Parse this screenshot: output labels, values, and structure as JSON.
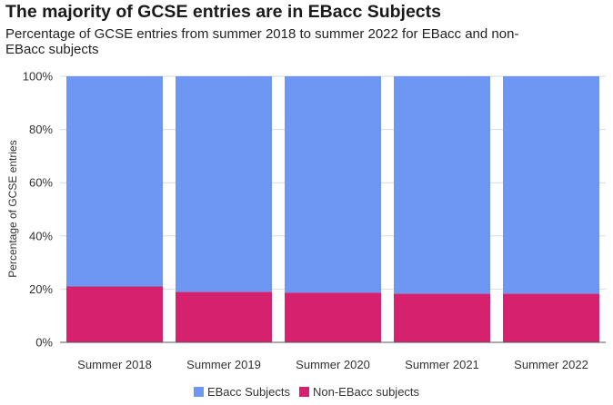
{
  "header": {
    "title": "The majority of GCSE entries are in EBacc Subjects",
    "subtitle": "Percentage of GCSE entries from summer 2018 to summer 2022 for EBacc and non-EBacc subjects"
  },
  "chart_data": {
    "type": "bar",
    "stacked": true,
    "title": "The majority of GCSE entries are in EBacc Subjects",
    "subtitle": "Percentage of GCSE entries from summer 2018 to summer 2022 for EBacc and non-EBacc subjects",
    "xlabel": "",
    "ylabel": "Percentage of GCSE entries",
    "ylim": [
      0,
      100
    ],
    "yticks": [
      "0%",
      "20%",
      "40%",
      "60%",
      "80%",
      "100%"
    ],
    "grid": true,
    "legend_position": "bottom",
    "categories": [
      "Summer 2018",
      "Summer 2019",
      "Summer 2020",
      "Summer 2021",
      "Summer 2022"
    ],
    "series": [
      {
        "name": "Non-EBacc subjects",
        "color": "#d6226e",
        "values": [
          21,
          19,
          18.7,
          18.3,
          18.3
        ]
      },
      {
        "name": "EBacc Subjects",
        "color": "#6d97f2",
        "values": [
          79,
          81,
          81.3,
          81.7,
          81.7
        ]
      }
    ],
    "legend_order": [
      "EBacc Subjects",
      "Non-EBacc subjects"
    ]
  }
}
